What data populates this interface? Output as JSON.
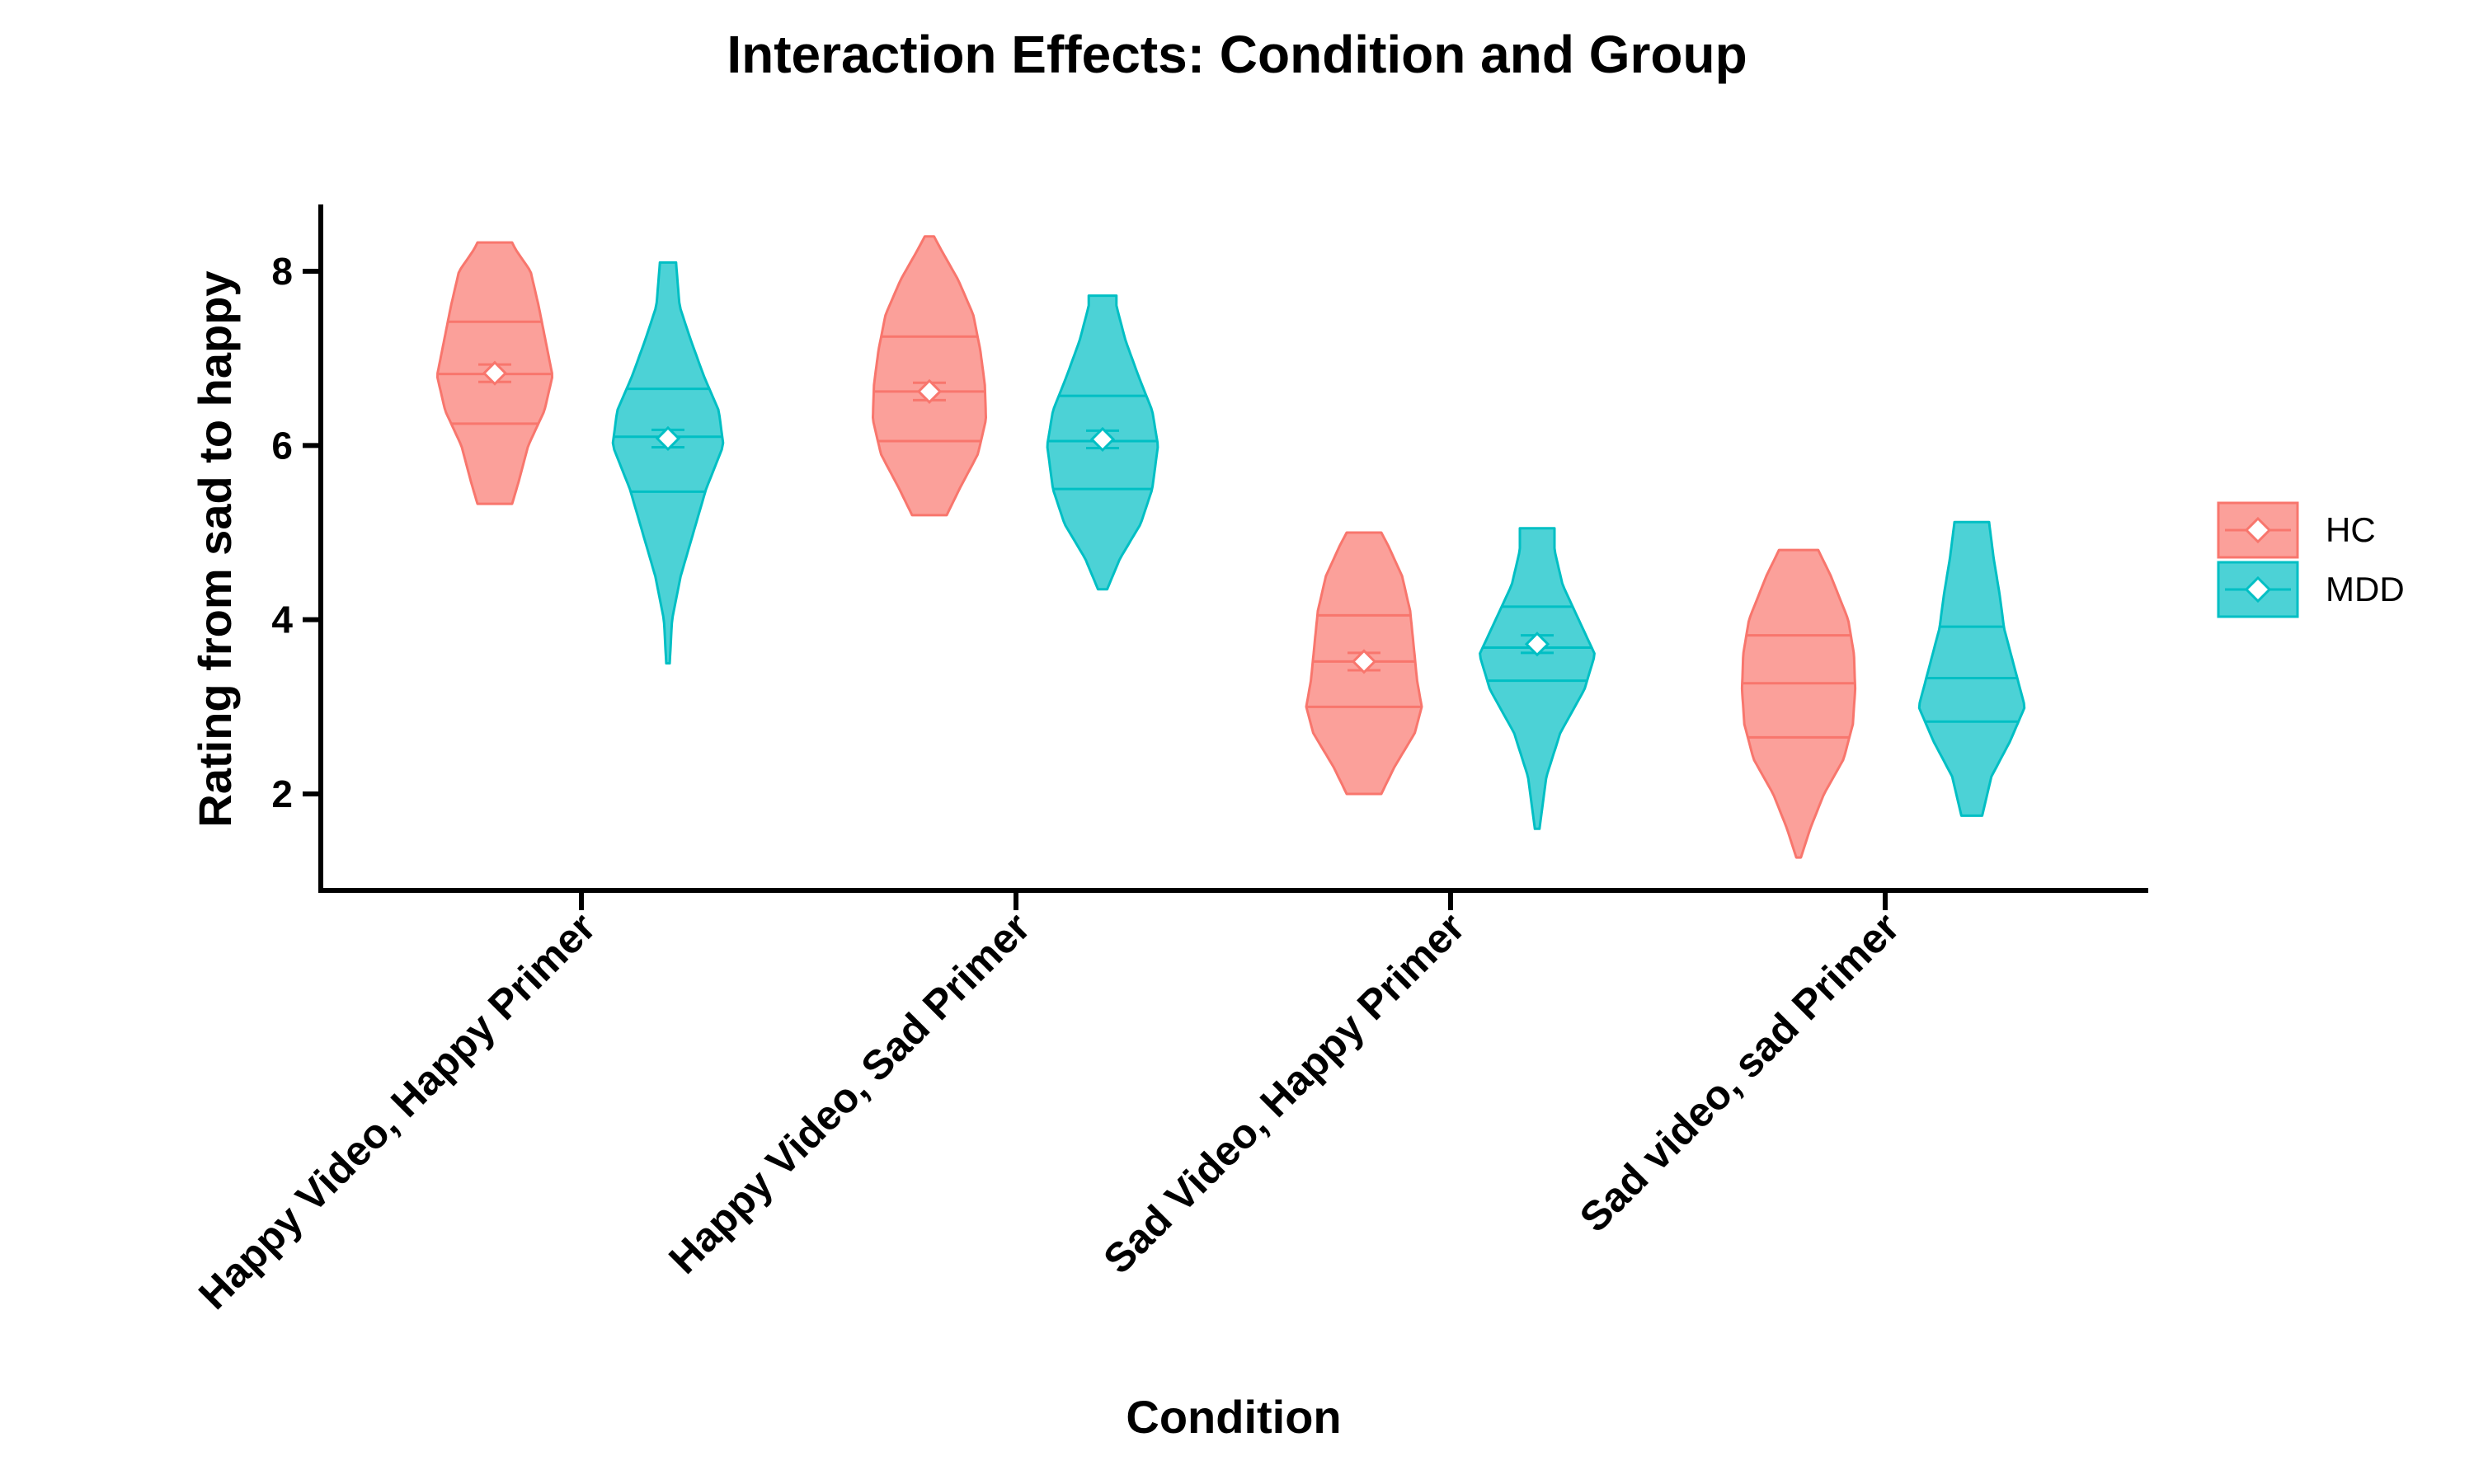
{
  "chart_data": {
    "type": "violin",
    "title": "Interaction Effects: Condition and Group",
    "xlabel": "Condition",
    "ylabel": "Rating from sad to happy",
    "ylim": [
      0.9,
      8.8
    ],
    "yticks": [
      2,
      4,
      6,
      8
    ],
    "grid": false,
    "legend_position": "right",
    "categories": [
      "Happy Video, Happy Primer",
      "Happy Video, Sad Primer",
      "Sad Video, Happy Primer",
      "Sad video, sad Primer"
    ],
    "series": [
      {
        "name": "HC",
        "color": "#F8766D",
        "fill": "#FBA09A",
        "violins": [
          {
            "min": 5.33,
            "max": 8.33,
            "q1": 6.25,
            "median": 6.82,
            "q3": 7.42,
            "mean": 6.83,
            "se": 0.1,
            "profile": [
              [
                5.33,
                0.3
              ],
              [
                5.6,
                0.42
              ],
              [
                6.0,
                0.58
              ],
              [
                6.4,
                0.86
              ],
              [
                6.8,
                1.0
              ],
              [
                7.2,
                0.88
              ],
              [
                7.6,
                0.76
              ],
              [
                8.0,
                0.62
              ],
              [
                8.25,
                0.36
              ],
              [
                8.33,
                0.3
              ]
            ]
          },
          {
            "min": 5.2,
            "max": 8.4,
            "q1": 6.05,
            "median": 6.62,
            "q3": 7.25,
            "mean": 6.62,
            "se": 0.1,
            "profile": [
              [
                5.2,
                0.3
              ],
              [
                5.5,
                0.52
              ],
              [
                5.9,
                0.84
              ],
              [
                6.3,
                0.98
              ],
              [
                6.7,
                0.96
              ],
              [
                7.1,
                0.88
              ],
              [
                7.5,
                0.76
              ],
              [
                7.9,
                0.5
              ],
              [
                8.25,
                0.2
              ],
              [
                8.4,
                0.08
              ]
            ]
          },
          {
            "min": 2.0,
            "max": 5.0,
            "q1": 3.0,
            "median": 3.52,
            "q3": 4.05,
            "mean": 3.52,
            "se": 0.1,
            "profile": [
              [
                2.0,
                0.3
              ],
              [
                2.3,
                0.52
              ],
              [
                2.7,
                0.88
              ],
              [
                3.0,
                1.0
              ],
              [
                3.3,
                0.92
              ],
              [
                3.7,
                0.86
              ],
              [
                4.1,
                0.8
              ],
              [
                4.5,
                0.66
              ],
              [
                4.85,
                0.42
              ],
              [
                5.0,
                0.3
              ]
            ]
          },
          {
            "min": 1.27,
            "max": 4.8,
            "q1": 2.65,
            "median": 3.27,
            "q3": 3.82,
            "mean": null,
            "se": null,
            "profile": [
              [
                1.27,
                0.04
              ],
              [
                1.6,
                0.2
              ],
              [
                2.0,
                0.44
              ],
              [
                2.4,
                0.78
              ],
              [
                2.8,
                0.94
              ],
              [
                3.2,
                0.98
              ],
              [
                3.6,
                0.96
              ],
              [
                4.0,
                0.86
              ],
              [
                4.5,
                0.56
              ],
              [
                4.8,
                0.34
              ]
            ]
          }
        ]
      },
      {
        "name": "MDD",
        "color": "#00BFC4",
        "fill": "#4CD2D6",
        "violins": [
          {
            "min": 3.5,
            "max": 8.1,
            "q1": 5.47,
            "median": 6.1,
            "q3": 6.65,
            "mean": 6.08,
            "se": 0.1,
            "profile": [
              [
                3.5,
                0.03
              ],
              [
                4.0,
                0.07
              ],
              [
                4.5,
                0.22
              ],
              [
                5.0,
                0.44
              ],
              [
                5.5,
                0.66
              ],
              [
                6.0,
                0.96
              ],
              [
                6.4,
                0.88
              ],
              [
                6.8,
                0.62
              ],
              [
                7.2,
                0.4
              ],
              [
                7.6,
                0.2
              ],
              [
                8.1,
                0.14
              ]
            ]
          },
          {
            "min": 4.35,
            "max": 7.72,
            "q1": 5.5,
            "median": 6.05,
            "q3": 6.57,
            "mean": 6.07,
            "se": 0.1,
            "profile": [
              [
                4.35,
                0.08
              ],
              [
                4.7,
                0.3
              ],
              [
                5.1,
                0.66
              ],
              [
                5.5,
                0.86
              ],
              [
                6.0,
                0.96
              ],
              [
                6.4,
                0.86
              ],
              [
                6.8,
                0.62
              ],
              [
                7.2,
                0.4
              ],
              [
                7.6,
                0.24
              ],
              [
                7.72,
                0.24
              ]
            ]
          },
          {
            "min": 1.6,
            "max": 5.05,
            "q1": 3.3,
            "median": 3.68,
            "q3": 4.15,
            "mean": 3.72,
            "se": 0.1,
            "profile": [
              [
                1.6,
                0.04
              ],
              [
                2.2,
                0.16
              ],
              [
                2.7,
                0.4
              ],
              [
                3.2,
                0.82
              ],
              [
                3.6,
                1.0
              ],
              [
                4.0,
                0.72
              ],
              [
                4.4,
                0.44
              ],
              [
                4.8,
                0.3
              ],
              [
                5.05,
                0.3
              ]
            ]
          },
          {
            "min": 1.75,
            "max": 5.12,
            "q1": 2.83,
            "median": 3.33,
            "q3": 3.92,
            "mean": null,
            "se": null,
            "profile": [
              [
                1.75,
                0.18
              ],
              [
                2.2,
                0.34
              ],
              [
                2.6,
                0.66
              ],
              [
                3.0,
                0.92
              ],
              [
                3.4,
                0.76
              ],
              [
                3.9,
                0.56
              ],
              [
                4.3,
                0.48
              ],
              [
                4.7,
                0.38
              ],
              [
                5.12,
                0.3
              ]
            ]
          }
        ]
      }
    ]
  }
}
